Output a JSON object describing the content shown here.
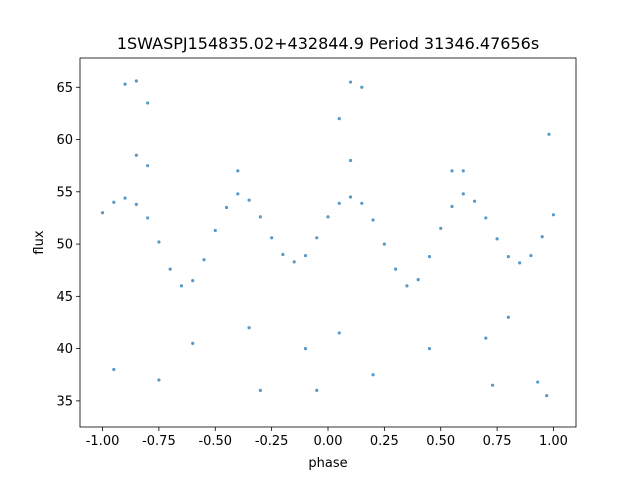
{
  "chart_data": {
    "type": "scatter",
    "title": "1SWASPJ154835.02+432844.9 Period 31346.47656s",
    "xlabel": "phase",
    "ylabel": "flux",
    "xlim": [
      -1.1,
      1.1
    ],
    "ylim": [
      32.5,
      67.8
    ],
    "x_ticks": [
      "-1.00",
      "-0.75",
      "-0.50",
      "-0.25",
      "0.00",
      "0.25",
      "0.50",
      "0.75",
      "1.00"
    ],
    "y_ticks": [
      "35",
      "40",
      "45",
      "50",
      "55",
      "60",
      "65"
    ],
    "grid": false,
    "legend": "none",
    "point_color": "#1f77b4",
    "series": [
      {
        "points": [
          [
            -1.0,
            53.0
          ],
          [
            -0.95,
            54.0
          ],
          [
            -0.9,
            54.4
          ],
          [
            -0.85,
            53.8
          ],
          [
            -0.8,
            52.5
          ],
          [
            -0.75,
            50.2
          ],
          [
            -0.7,
            47.6
          ],
          [
            -0.65,
            46.0
          ],
          [
            -0.6,
            46.5
          ],
          [
            -0.55,
            48.5
          ],
          [
            -0.5,
            51.3
          ],
          [
            -0.45,
            53.5
          ],
          [
            -0.4,
            54.8
          ],
          [
            -0.35,
            54.2
          ],
          [
            -0.3,
            52.6
          ],
          [
            -0.25,
            50.6
          ],
          [
            -0.2,
            49.0
          ],
          [
            -0.15,
            48.3
          ],
          [
            -0.1,
            48.9
          ],
          [
            -0.05,
            50.6
          ],
          [
            0.0,
            52.6
          ],
          [
            0.05,
            53.9
          ],
          [
            0.1,
            54.5
          ],
          [
            0.15,
            53.9
          ],
          [
            0.2,
            52.3
          ],
          [
            0.25,
            50.0
          ],
          [
            0.3,
            47.6
          ],
          [
            0.35,
            46.0
          ],
          [
            0.4,
            46.6
          ],
          [
            0.45,
            48.8
          ],
          [
            0.5,
            51.5
          ],
          [
            0.55,
            53.6
          ],
          [
            0.6,
            54.8
          ],
          [
            0.65,
            54.1
          ],
          [
            0.7,
            52.5
          ],
          [
            0.75,
            50.5
          ],
          [
            0.8,
            48.8
          ],
          [
            0.85,
            48.2
          ],
          [
            0.9,
            48.9
          ],
          [
            0.95,
            50.7
          ],
          [
            1.0,
            52.8
          ],
          [
            -0.9,
            65.3
          ],
          [
            -0.85,
            65.6
          ],
          [
            -0.8,
            63.5
          ],
          [
            0.05,
            62.0
          ],
          [
            0.1,
            65.5
          ],
          [
            0.15,
            65.0
          ],
          [
            -0.85,
            58.5
          ],
          [
            -0.8,
            57.5
          ],
          [
            0.1,
            58.0
          ],
          [
            0.55,
            57.0
          ],
          [
            0.6,
            57.0
          ],
          [
            -0.4,
            57.0
          ],
          [
            0.98,
            60.5
          ],
          [
            -0.3,
            36.0
          ],
          [
            -0.95,
            38.0
          ],
          [
            0.73,
            36.5
          ],
          [
            0.93,
            36.8
          ],
          [
            0.2,
            37.5
          ],
          [
            -0.75,
            37.0
          ],
          [
            -0.05,
            36.0
          ],
          [
            0.97,
            35.5
          ],
          [
            -0.35,
            42.0
          ],
          [
            0.05,
            41.5
          ],
          [
            -0.6,
            40.5
          ],
          [
            0.7,
            41.0
          ],
          [
            -0.1,
            40.0
          ],
          [
            0.45,
            40.0
          ],
          [
            0.8,
            43.0
          ]
        ]
      }
    ]
  }
}
